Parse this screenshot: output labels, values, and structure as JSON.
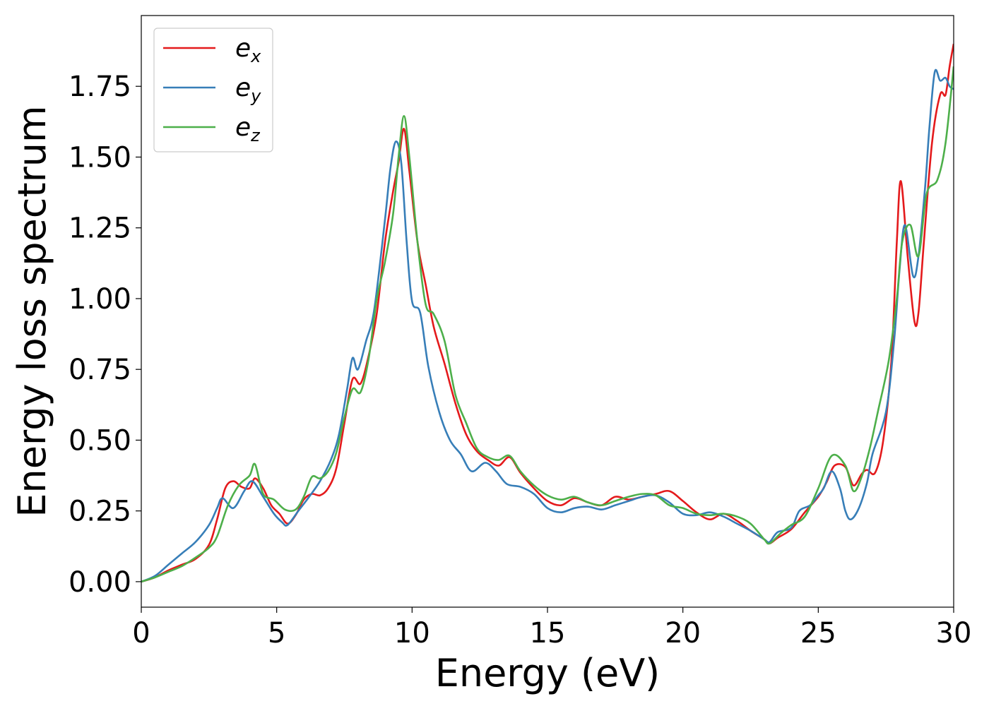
{
  "chart_data": {
    "type": "line",
    "title": "",
    "xlabel": "Energy (eV)",
    "ylabel": "Energy loss spectrum",
    "xlim": [
      0,
      30
    ],
    "ylim": [
      -0.09,
      2.0
    ],
    "xticks": [
      0,
      5,
      10,
      15,
      20,
      25,
      30
    ],
    "xtick_labels": [
      "0",
      "5",
      "10",
      "15",
      "20",
      "25",
      "30"
    ],
    "yticks": [
      0.0,
      0.25,
      0.5,
      0.75,
      1.0,
      1.25,
      1.5,
      1.75
    ],
    "ytick_labels": [
      "0.00",
      "0.25",
      "0.50",
      "0.75",
      "1.00",
      "1.25",
      "1.50",
      "1.75"
    ],
    "grid": false,
    "legend_position": "top-left",
    "series": [
      {
        "name": "e",
        "subscript": "x",
        "color": "#e41a1c",
        "points": [
          [
            0,
            0
          ],
          [
            0.5,
            0.015
          ],
          [
            1,
            0.04
          ],
          [
            1.5,
            0.06
          ],
          [
            2,
            0.08
          ],
          [
            2.5,
            0.13
          ],
          [
            2.8,
            0.22
          ],
          [
            3.1,
            0.33
          ],
          [
            3.4,
            0.355
          ],
          [
            3.7,
            0.335
          ],
          [
            4.0,
            0.33
          ],
          [
            4.2,
            0.365
          ],
          [
            4.5,
            0.33
          ],
          [
            4.8,
            0.27
          ],
          [
            5.1,
            0.24
          ],
          [
            5.4,
            0.205
          ],
          [
            5.7,
            0.235
          ],
          [
            6.0,
            0.29
          ],
          [
            6.3,
            0.31
          ],
          [
            6.6,
            0.305
          ],
          [
            6.9,
            0.33
          ],
          [
            7.2,
            0.4
          ],
          [
            7.5,
            0.56
          ],
          [
            7.8,
            0.715
          ],
          [
            8.1,
            0.7
          ],
          [
            8.4,
            0.8
          ],
          [
            8.7,
            0.95
          ],
          [
            9.0,
            1.2
          ],
          [
            9.3,
            1.38
          ],
          [
            9.5,
            1.48
          ],
          [
            9.7,
            1.6
          ],
          [
            9.9,
            1.45
          ],
          [
            10.2,
            1.2
          ],
          [
            10.5,
            1.05
          ],
          [
            10.8,
            0.9
          ],
          [
            11.2,
            0.77
          ],
          [
            11.6,
            0.63
          ],
          [
            12.0,
            0.52
          ],
          [
            12.4,
            0.46
          ],
          [
            12.8,
            0.43
          ],
          [
            13.2,
            0.41
          ],
          [
            13.6,
            0.44
          ],
          [
            14.0,
            0.385
          ],
          [
            14.5,
            0.33
          ],
          [
            15.0,
            0.285
          ],
          [
            15.5,
            0.27
          ],
          [
            16.0,
            0.295
          ],
          [
            16.5,
            0.28
          ],
          [
            17.0,
            0.27
          ],
          [
            17.5,
            0.3
          ],
          [
            18.0,
            0.29
          ],
          [
            18.5,
            0.3
          ],
          [
            19.0,
            0.31
          ],
          [
            19.5,
            0.32
          ],
          [
            20.0,
            0.285
          ],
          [
            20.5,
            0.245
          ],
          [
            21.0,
            0.22
          ],
          [
            21.5,
            0.24
          ],
          [
            22.0,
            0.215
          ],
          [
            22.5,
            0.18
          ],
          [
            23.0,
            0.15
          ],
          [
            23.2,
            0.135
          ],
          [
            23.5,
            0.155
          ],
          [
            24.0,
            0.185
          ],
          [
            24.5,
            0.245
          ],
          [
            25.0,
            0.3
          ],
          [
            25.3,
            0.35
          ],
          [
            25.6,
            0.41
          ],
          [
            26.0,
            0.405
          ],
          [
            26.3,
            0.34
          ],
          [
            26.6,
            0.38
          ],
          [
            26.8,
            0.395
          ],
          [
            27.1,
            0.385
          ],
          [
            27.4,
            0.5
          ],
          [
            27.7,
            0.78
          ],
          [
            27.9,
            1.2
          ],
          [
            28.05,
            1.415
          ],
          [
            28.3,
            1.15
          ],
          [
            28.55,
            0.92
          ],
          [
            28.7,
            0.95
          ],
          [
            28.9,
            1.2
          ],
          [
            29.2,
            1.55
          ],
          [
            29.5,
            1.72
          ],
          [
            29.7,
            1.72
          ],
          [
            29.85,
            1.82
          ],
          [
            30,
            1.9
          ]
        ]
      },
      {
        "name": "e",
        "subscript": "y",
        "color": "#377eb8",
        "points": [
          [
            0,
            0
          ],
          [
            0.5,
            0.02
          ],
          [
            1,
            0.06
          ],
          [
            1.5,
            0.1
          ],
          [
            2,
            0.14
          ],
          [
            2.5,
            0.2
          ],
          [
            2.8,
            0.26
          ],
          [
            3.0,
            0.295
          ],
          [
            3.4,
            0.26
          ],
          [
            3.8,
            0.32
          ],
          [
            4.1,
            0.355
          ],
          [
            4.5,
            0.3
          ],
          [
            4.9,
            0.24
          ],
          [
            5.2,
            0.21
          ],
          [
            5.4,
            0.2
          ],
          [
            5.8,
            0.25
          ],
          [
            6.2,
            0.3
          ],
          [
            6.6,
            0.355
          ],
          [
            7.0,
            0.43
          ],
          [
            7.3,
            0.52
          ],
          [
            7.6,
            0.68
          ],
          [
            7.8,
            0.79
          ],
          [
            8.0,
            0.75
          ],
          [
            8.3,
            0.85
          ],
          [
            8.6,
            0.96
          ],
          [
            9.0,
            1.28
          ],
          [
            9.2,
            1.46
          ],
          [
            9.4,
            1.555
          ],
          [
            9.6,
            1.48
          ],
          [
            9.8,
            1.2
          ],
          [
            10.0,
            0.99
          ],
          [
            10.3,
            0.95
          ],
          [
            10.6,
            0.76
          ],
          [
            11.0,
            0.6
          ],
          [
            11.4,
            0.5
          ],
          [
            11.8,
            0.45
          ],
          [
            12.2,
            0.39
          ],
          [
            12.7,
            0.42
          ],
          [
            13.1,
            0.39
          ],
          [
            13.5,
            0.345
          ],
          [
            14.0,
            0.335
          ],
          [
            14.5,
            0.31
          ],
          [
            15.0,
            0.26
          ],
          [
            15.5,
            0.245
          ],
          [
            16.0,
            0.26
          ],
          [
            16.5,
            0.265
          ],
          [
            17.0,
            0.255
          ],
          [
            17.5,
            0.27
          ],
          [
            18.0,
            0.285
          ],
          [
            18.5,
            0.3
          ],
          [
            19.0,
            0.305
          ],
          [
            19.5,
            0.28
          ],
          [
            20.0,
            0.24
          ],
          [
            20.5,
            0.235
          ],
          [
            21.0,
            0.245
          ],
          [
            21.5,
            0.23
          ],
          [
            22.0,
            0.205
          ],
          [
            22.5,
            0.18
          ],
          [
            23.0,
            0.15
          ],
          [
            23.2,
            0.14
          ],
          [
            23.5,
            0.175
          ],
          [
            24.0,
            0.19
          ],
          [
            24.3,
            0.25
          ],
          [
            24.7,
            0.27
          ],
          [
            25.0,
            0.305
          ],
          [
            25.2,
            0.33
          ],
          [
            25.5,
            0.39
          ],
          [
            25.8,
            0.33
          ],
          [
            26.0,
            0.25
          ],
          [
            26.2,
            0.22
          ],
          [
            26.5,
            0.26
          ],
          [
            26.8,
            0.35
          ],
          [
            27.0,
            0.45
          ],
          [
            27.5,
            0.6
          ],
          [
            27.8,
            0.85
          ],
          [
            28.0,
            1.1
          ],
          [
            28.2,
            1.26
          ],
          [
            28.5,
            1.08
          ],
          [
            28.7,
            1.15
          ],
          [
            28.95,
            1.4
          ],
          [
            29.1,
            1.6
          ],
          [
            29.3,
            1.8
          ],
          [
            29.5,
            1.77
          ],
          [
            29.7,
            1.78
          ],
          [
            29.85,
            1.75
          ],
          [
            30,
            1.74
          ]
        ]
      },
      {
        "name": "e",
        "subscript": "z",
        "color": "#4daf4a",
        "points": [
          [
            0,
            0
          ],
          [
            0.5,
            0.015
          ],
          [
            1,
            0.035
          ],
          [
            1.5,
            0.055
          ],
          [
            2,
            0.085
          ],
          [
            2.5,
            0.12
          ],
          [
            2.8,
            0.16
          ],
          [
            3.2,
            0.27
          ],
          [
            3.6,
            0.34
          ],
          [
            4.0,
            0.375
          ],
          [
            4.2,
            0.415
          ],
          [
            4.5,
            0.31
          ],
          [
            4.9,
            0.29
          ],
          [
            5.3,
            0.255
          ],
          [
            5.7,
            0.255
          ],
          [
            6.0,
            0.3
          ],
          [
            6.3,
            0.37
          ],
          [
            6.6,
            0.365
          ],
          [
            6.9,
            0.39
          ],
          [
            7.2,
            0.455
          ],
          [
            7.5,
            0.58
          ],
          [
            7.8,
            0.68
          ],
          [
            8.1,
            0.67
          ],
          [
            8.4,
            0.79
          ],
          [
            8.7,
            1.0
          ],
          [
            9.0,
            1.13
          ],
          [
            9.3,
            1.3
          ],
          [
            9.5,
            1.5
          ],
          [
            9.7,
            1.645
          ],
          [
            9.9,
            1.5
          ],
          [
            10.2,
            1.2
          ],
          [
            10.5,
            0.98
          ],
          [
            10.8,
            0.945
          ],
          [
            11.2,
            0.85
          ],
          [
            11.6,
            0.66
          ],
          [
            12.0,
            0.56
          ],
          [
            12.4,
            0.47
          ],
          [
            12.8,
            0.44
          ],
          [
            13.2,
            0.43
          ],
          [
            13.6,
            0.445
          ],
          [
            14.0,
            0.39
          ],
          [
            14.5,
            0.34
          ],
          [
            15.0,
            0.305
          ],
          [
            15.5,
            0.29
          ],
          [
            16.0,
            0.3
          ],
          [
            16.5,
            0.28
          ],
          [
            17.0,
            0.27
          ],
          [
            17.5,
            0.285
          ],
          [
            18.0,
            0.3
          ],
          [
            18.5,
            0.31
          ],
          [
            19.0,
            0.305
          ],
          [
            19.5,
            0.27
          ],
          [
            20.0,
            0.26
          ],
          [
            20.5,
            0.24
          ],
          [
            21.0,
            0.235
          ],
          [
            21.5,
            0.24
          ],
          [
            22.0,
            0.23
          ],
          [
            22.5,
            0.205
          ],
          [
            23.0,
            0.15
          ],
          [
            23.2,
            0.135
          ],
          [
            23.6,
            0.17
          ],
          [
            24.0,
            0.2
          ],
          [
            24.5,
            0.23
          ],
          [
            25.0,
            0.33
          ],
          [
            25.5,
            0.445
          ],
          [
            26.0,
            0.41
          ],
          [
            26.3,
            0.32
          ],
          [
            26.6,
            0.37
          ],
          [
            26.9,
            0.47
          ],
          [
            27.2,
            0.6
          ],
          [
            27.6,
            0.78
          ],
          [
            27.9,
            1.0
          ],
          [
            28.1,
            1.2
          ],
          [
            28.4,
            1.26
          ],
          [
            28.7,
            1.15
          ],
          [
            29.0,
            1.37
          ],
          [
            29.4,
            1.42
          ],
          [
            29.7,
            1.55
          ],
          [
            30,
            1.82
          ]
        ]
      }
    ]
  }
}
